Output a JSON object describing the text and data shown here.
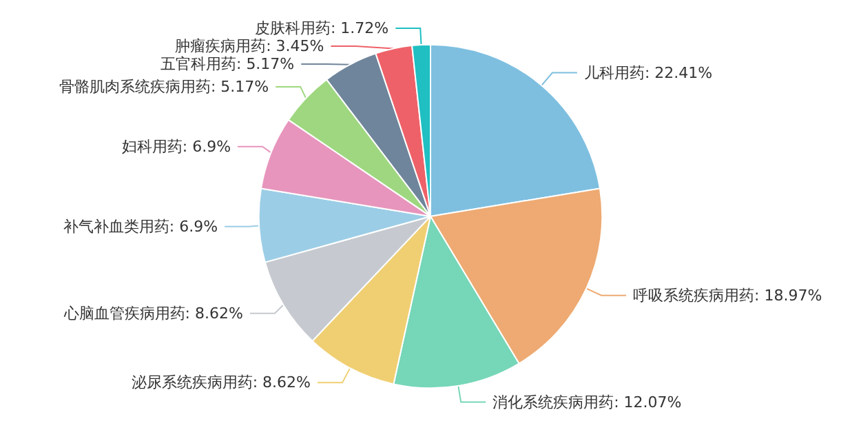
{
  "chart_data": {
    "type": "pie",
    "categories": [
      "儿科用药",
      "呼吸系统疾病用药",
      "消化系统疾病用药",
      "泌尿系统疾病用药",
      "心脑血管疾病用药",
      "补气补血类用药",
      "妇科用药",
      "骨骼肌肉系统疾病用药",
      "五官科用药",
      "肿瘤疾病用药",
      "皮肤科用药"
    ],
    "values": [
      22.41,
      18.97,
      12.07,
      8.62,
      8.62,
      6.9,
      6.9,
      5.17,
      5.17,
      3.45,
      1.72
    ],
    "value_labels": [
      "22.41%",
      "18.97%",
      "12.07%",
      "8.62%",
      "8.62%",
      "6.9%",
      "6.9%",
      "5.17%",
      "5.17%",
      "3.45%",
      "1.72%"
    ],
    "colors": [
      "#7ebfe0",
      "#eeaa72",
      "#76d6b8",
      "#f0cf72",
      "#c6cad0",
      "#9ccde6",
      "#e795bd",
      "#9ed77f",
      "#6f859b",
      "#ee6168",
      "#1fbfc2"
    ]
  }
}
